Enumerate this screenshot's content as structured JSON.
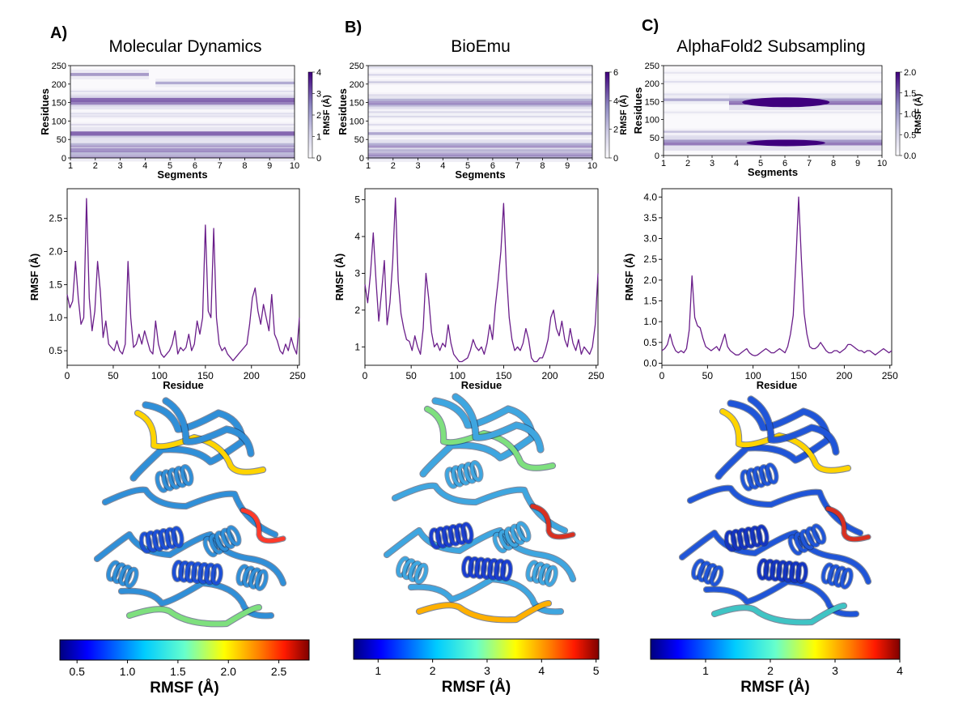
{
  "panels": [
    {
      "letter": "A)",
      "title": "Molecular Dynamics"
    },
    {
      "letter": "B)",
      "title": "BioEmu"
    },
    {
      "letter": "C)",
      "title": "AlphaFold2 Subsampling"
    }
  ],
  "structures": [
    {
      "description_hidden": "cartoon",
      "label": ""
    },
    {
      "description_hidden": "cartoon",
      "label": ""
    },
    {
      "description_hidden": "cartoon",
      "label": ""
    }
  ],
  "colors": {
    "line": "#6a1e8a",
    "heat_dark": "#3f007d",
    "jet": [
      "#00007f",
      "#0000ff",
      "#007fff",
      "#00ffff",
      "#7fff7f",
      "#ffff00",
      "#ff7f00",
      "#ff0000",
      "#7f0000"
    ]
  },
  "chart_data": [
    {
      "type": "heatmap",
      "panel": "A",
      "xlabel": "Segments",
      "ylabel": "Residues",
      "x_ticks": [
        "1",
        "2",
        "3",
        "4",
        "5",
        "6",
        "7",
        "8",
        "9",
        "10"
      ],
      "y_ticks": [
        "0",
        "50",
        "100",
        "150",
        "200",
        "250"
      ],
      "xlim": [
        1,
        10
      ],
      "ylim": [
        0,
        250
      ],
      "colorbar": {
        "label": "RMSF (Å)",
        "ticks": [
          "0",
          "1",
          "2",
          "3",
          "4"
        ],
        "range": [
          0,
          4
        ]
      },
      "bands": [
        {
          "residue": 5,
          "value": 2.8
        },
        {
          "residue": 13,
          "value": 2.0
        },
        {
          "residue": 21,
          "value": 3.2
        },
        {
          "residue": 33,
          "value": 3.0
        },
        {
          "residue": 37,
          "value": 1.8
        },
        {
          "residue": 58,
          "value": 1.2
        },
        {
          "residue": 66,
          "value": 3.5
        },
        {
          "residue": 90,
          "value": 0.9
        },
        {
          "residue": 113,
          "value": 0.9
        },
        {
          "residue": 120,
          "value": 0.8
        },
        {
          "residue": 150,
          "value": 3.6
        },
        {
          "residue": 157,
          "value": 3.4
        },
        {
          "residue": 180,
          "value": 0.8
        },
        {
          "residue": 203,
          "value": 2.2
        },
        {
          "residue": 226,
          "value": 2.5
        }
      ]
    },
    {
      "type": "heatmap",
      "panel": "B",
      "xlabel": "Segments",
      "ylabel": "Residues",
      "x_ticks": [
        "1",
        "2",
        "3",
        "4",
        "5",
        "6",
        "7",
        "8",
        "9",
        "10"
      ],
      "y_ticks": [
        "0",
        "50",
        "100",
        "150",
        "200",
        "250"
      ],
      "xlim": [
        1,
        10
      ],
      "ylim": [
        0,
        250
      ],
      "colorbar": {
        "label": "RMSF (Å)",
        "ticks": [
          "0",
          "2",
          "4",
          "6"
        ],
        "range": [
          0,
          6
        ]
      },
      "bands": [
        {
          "residue": 3,
          "value": 4.0
        },
        {
          "residue": 10,
          "value": 4.2
        },
        {
          "residue": 20,
          "value": 3.2
        },
        {
          "residue": 33,
          "value": 5.0
        },
        {
          "residue": 37,
          "value": 3.0
        },
        {
          "residue": 66,
          "value": 3.4
        },
        {
          "residue": 90,
          "value": 1.3
        },
        {
          "residue": 112,
          "value": 1.5
        },
        {
          "residue": 124,
          "value": 1.5
        },
        {
          "residue": 143,
          "value": 3.4
        },
        {
          "residue": 150,
          "value": 4.8
        },
        {
          "residue": 157,
          "value": 3.0
        },
        {
          "residue": 170,
          "value": 1.4
        },
        {
          "residue": 205,
          "value": 2.2
        },
        {
          "residue": 225,
          "value": 1.6
        },
        {
          "residue": 245,
          "value": 1.2
        }
      ]
    },
    {
      "type": "heatmap",
      "panel": "C",
      "xlabel": "Segments",
      "ylabel": "Residues",
      "x_ticks": [
        "1",
        "2",
        "3",
        "4",
        "5",
        "6",
        "7",
        "8",
        "9",
        "10"
      ],
      "y_ticks": [
        "0",
        "50",
        "100",
        "150",
        "200",
        "250"
      ],
      "xlim": [
        1,
        10
      ],
      "ylim": [
        0,
        250
      ],
      "colorbar": {
        "label": "RMSF (Å)",
        "ticks": [
          "0.0",
          "0.5",
          "1.0",
          "1.5",
          "2.0"
        ],
        "range": [
          0,
          2
        ]
      },
      "bands": [
        {
          "residue": 35,
          "value": 2.0
        },
        {
          "residue": 40,
          "value": 1.2
        },
        {
          "residue": 66,
          "value": 0.8
        },
        {
          "residue": 120,
          "value": 0.3
        },
        {
          "residue": 148,
          "value": 2.0
        },
        {
          "residue": 155,
          "value": 1.1
        },
        {
          "residue": 170,
          "value": 0.4
        },
        {
          "residue": 205,
          "value": 0.4
        },
        {
          "residue": 230,
          "value": 0.3
        }
      ]
    },
    {
      "type": "line",
      "panel": "A",
      "xlabel": "Residue",
      "ylabel": "RMSF (Å)",
      "xlim": [
        0,
        252
      ],
      "ylim": [
        0.28,
        2.95
      ],
      "x_ticks": [
        "0",
        "50",
        "100",
        "150",
        "200",
        "250"
      ],
      "y_ticks": [
        "0.5",
        "1.0",
        "1.5",
        "2.0",
        "2.5"
      ],
      "x": [
        0,
        3,
        6,
        9,
        12,
        15,
        18,
        21,
        24,
        27,
        30,
        33,
        36,
        39,
        42,
        45,
        48,
        51,
        54,
        57,
        60,
        63,
        66,
        69,
        72,
        75,
        78,
        81,
        84,
        87,
        90,
        93,
        96,
        99,
        102,
        105,
        108,
        111,
        114,
        117,
        120,
        123,
        126,
        129,
        132,
        135,
        138,
        141,
        144,
        147,
        150,
        153,
        156,
        159,
        162,
        165,
        168,
        171,
        174,
        177,
        180,
        183,
        186,
        189,
        192,
        195,
        198,
        201,
        204,
        207,
        210,
        213,
        216,
        219,
        222,
        225,
        228,
        231,
        234,
        237,
        240,
        243,
        246,
        249,
        252
      ],
      "values": [
        1.35,
        1.15,
        1.25,
        1.85,
        1.3,
        0.9,
        1.0,
        2.8,
        1.3,
        0.8,
        1.1,
        1.85,
        1.4,
        0.7,
        0.95,
        0.6,
        0.55,
        0.5,
        0.65,
        0.5,
        0.45,
        0.6,
        1.85,
        1.0,
        0.55,
        0.6,
        0.75,
        0.6,
        0.8,
        0.65,
        0.5,
        0.45,
        0.95,
        0.6,
        0.45,
        0.4,
        0.45,
        0.5,
        0.6,
        0.8,
        0.45,
        0.55,
        0.5,
        0.55,
        0.75,
        0.5,
        0.6,
        0.95,
        0.75,
        1.0,
        2.4,
        1.1,
        1.0,
        2.35,
        1.0,
        0.6,
        0.5,
        0.55,
        0.45,
        0.4,
        0.35,
        0.4,
        0.45,
        0.5,
        0.55,
        0.6,
        0.9,
        1.3,
        1.45,
        1.1,
        0.9,
        1.2,
        1.0,
        0.8,
        1.35,
        0.75,
        0.65,
        0.5,
        0.45,
        0.6,
        0.5,
        0.7,
        0.55,
        0.45,
        1.0
      ]
    },
    {
      "type": "line",
      "panel": "B",
      "xlabel": "Residue",
      "ylabel": "RMSF (Å)",
      "xlim": [
        0,
        252
      ],
      "ylim": [
        0.5,
        5.3
      ],
      "x_ticks": [
        "0",
        "50",
        "100",
        "150",
        "200",
        "250"
      ],
      "y_ticks": [
        "1",
        "2",
        "3",
        "4",
        "5"
      ],
      "x": [
        0,
        3,
        6,
        9,
        12,
        15,
        18,
        21,
        24,
        27,
        30,
        33,
        36,
        39,
        42,
        45,
        48,
        51,
        54,
        57,
        60,
        63,
        66,
        69,
        72,
        75,
        78,
        81,
        84,
        87,
        90,
        93,
        96,
        99,
        102,
        105,
        108,
        111,
        114,
        117,
        120,
        123,
        126,
        129,
        132,
        135,
        138,
        141,
        144,
        147,
        150,
        153,
        156,
        159,
        162,
        165,
        168,
        171,
        174,
        177,
        180,
        183,
        186,
        189,
        192,
        195,
        198,
        201,
        204,
        207,
        210,
        213,
        216,
        219,
        222,
        225,
        228,
        231,
        234,
        237,
        240,
        243,
        246,
        249,
        252
      ],
      "values": [
        2.7,
        2.2,
        3.0,
        4.1,
        2.8,
        1.7,
        2.5,
        3.35,
        1.6,
        2.2,
        3.3,
        5.05,
        2.8,
        1.9,
        1.5,
        1.2,
        1.15,
        0.9,
        1.3,
        1.0,
        0.8,
        1.5,
        3.0,
        2.3,
        1.4,
        1.0,
        1.1,
        0.9,
        1.1,
        1.0,
        1.6,
        1.1,
        0.8,
        0.7,
        0.6,
        0.6,
        0.65,
        0.7,
        0.9,
        1.2,
        1.0,
        0.9,
        1.0,
        0.8,
        1.1,
        1.6,
        1.2,
        2.1,
        2.8,
        3.6,
        4.9,
        3.0,
        1.8,
        1.2,
        0.9,
        1.0,
        0.9,
        1.1,
        1.5,
        1.2,
        0.7,
        0.6,
        0.6,
        0.7,
        0.7,
        0.9,
        1.2,
        1.8,
        2.0,
        1.5,
        1.3,
        1.7,
        1.2,
        1.0,
        1.5,
        1.1,
        0.9,
        1.2,
        0.8,
        1.0,
        0.9,
        0.8,
        1.0,
        1.6,
        3.0
      ]
    },
    {
      "type": "line",
      "panel": "C",
      "xlabel": "Residue",
      "ylabel": "RMSF (Å)",
      "xlim": [
        0,
        252
      ],
      "ylim": [
        -0.05,
        4.2
      ],
      "x_ticks": [
        "0",
        "50",
        "100",
        "150",
        "200",
        "250"
      ],
      "y_ticks": [
        "0.0",
        "0.5",
        "1.0",
        "1.5",
        "2.0",
        "2.5",
        "3.0",
        "3.5",
        "4.0"
      ],
      "x": [
        0,
        3,
        6,
        9,
        12,
        15,
        18,
        21,
        24,
        27,
        30,
        33,
        36,
        39,
        42,
        45,
        48,
        51,
        54,
        57,
        60,
        63,
        66,
        69,
        72,
        75,
        78,
        81,
        84,
        87,
        90,
        93,
        96,
        99,
        102,
        105,
        108,
        111,
        114,
        117,
        120,
        123,
        126,
        129,
        132,
        135,
        138,
        141,
        144,
        147,
        150,
        153,
        156,
        159,
        162,
        165,
        168,
        171,
        174,
        177,
        180,
        183,
        186,
        189,
        192,
        195,
        198,
        201,
        204,
        207,
        210,
        213,
        216,
        219,
        222,
        225,
        228,
        231,
        234,
        237,
        240,
        243,
        246,
        249,
        252
      ],
      "values": [
        0.3,
        0.35,
        0.45,
        0.7,
        0.45,
        0.3,
        0.25,
        0.3,
        0.25,
        0.35,
        0.8,
        2.1,
        1.1,
        0.9,
        0.85,
        0.6,
        0.4,
        0.35,
        0.3,
        0.35,
        0.4,
        0.3,
        0.5,
        0.7,
        0.4,
        0.3,
        0.25,
        0.2,
        0.2,
        0.25,
        0.3,
        0.35,
        0.25,
        0.2,
        0.18,
        0.2,
        0.25,
        0.3,
        0.35,
        0.3,
        0.25,
        0.25,
        0.3,
        0.35,
        0.3,
        0.25,
        0.4,
        0.7,
        1.15,
        2.5,
        4.0,
        2.5,
        1.2,
        0.7,
        0.4,
        0.35,
        0.35,
        0.4,
        0.5,
        0.4,
        0.3,
        0.25,
        0.25,
        0.3,
        0.3,
        0.25,
        0.3,
        0.35,
        0.45,
        0.45,
        0.4,
        0.35,
        0.3,
        0.3,
        0.25,
        0.3,
        0.3,
        0.25,
        0.2,
        0.25,
        0.3,
        0.35,
        0.3,
        0.25,
        0.3
      ]
    },
    {
      "type": "colorbar",
      "panel": "A",
      "label": "RMSF (Å)",
      "range": [
        0.33,
        2.8
      ],
      "ticks": [
        "0.5",
        "1.0",
        "1.5",
        "2.0",
        "2.5"
      ],
      "tick_values": [
        0.5,
        1.0,
        1.5,
        2.0,
        2.5
      ]
    },
    {
      "type": "colorbar",
      "panel": "B",
      "label": "RMSF (Å)",
      "range": [
        0.55,
        5.05
      ],
      "ticks": [
        "1",
        "2",
        "3",
        "4",
        "5"
      ],
      "tick_values": [
        1,
        2,
        3,
        4,
        5
      ]
    },
    {
      "type": "colorbar",
      "panel": "C",
      "label": "RMSF (Å)",
      "range": [
        0.15,
        4.0
      ],
      "ticks": [
        "1",
        "2",
        "3",
        "4"
      ],
      "tick_values": [
        1,
        2,
        3,
        4
      ]
    }
  ]
}
